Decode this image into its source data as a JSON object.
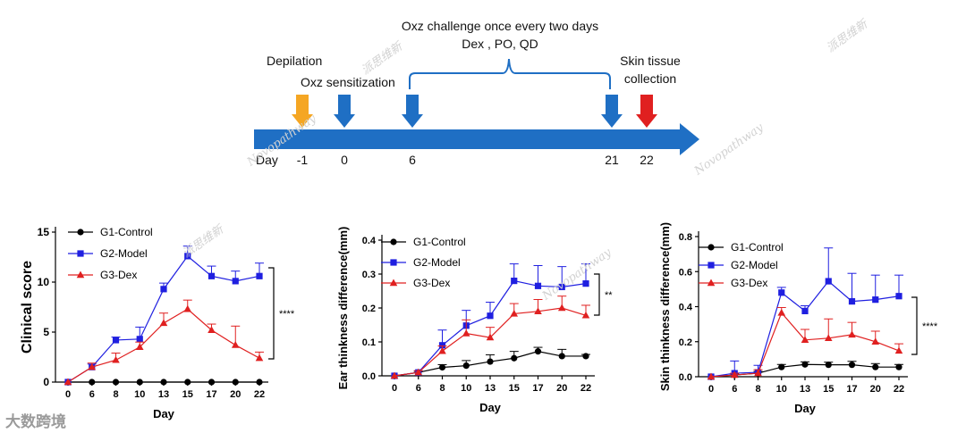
{
  "timeline": {
    "labels": {
      "depilation": "Depilation",
      "sensitization": "Oxz sensitization",
      "challenge": "Oxz challenge once every two days",
      "treatment": "Dex , PO, QD",
      "collection_line1": "Skin tissue",
      "collection_line2": "collection"
    },
    "day_label": "Day",
    "days": [
      "-1",
      "0",
      "6",
      "21",
      "22"
    ],
    "colors": {
      "axis": "#1f6fc4",
      "depilation": "#f5a623",
      "blue_marker": "#1f6fc4",
      "collection": "#e02020",
      "bracket": "#1f6fc4"
    }
  },
  "chart_data": [
    {
      "type": "line",
      "id": "clinical",
      "title": "",
      "xlabel": "Day",
      "ylabel": "Clinical score",
      "categories": [
        "0",
        "6",
        "8",
        "10",
        "13",
        "15",
        "17",
        "20",
        "22"
      ],
      "ylim": [
        0,
        15
      ],
      "yticks": [
        "0",
        "5",
        "10",
        "15"
      ],
      "legend_position": "top-left",
      "significance": "****",
      "series": [
        {
          "name": "G1-Control",
          "color": "#000000",
          "marker": "circle",
          "values": [
            0,
            0,
            0,
            0,
            0,
            0,
            0,
            0,
            0
          ],
          "errors": [
            0,
            0,
            0,
            0,
            0,
            0,
            0,
            0,
            0
          ]
        },
        {
          "name": "G2-Model",
          "color": "#1f1fe0",
          "marker": "square",
          "values": [
            0,
            1.5,
            4.2,
            4.3,
            9.3,
            12.6,
            10.6,
            10.1,
            10.6
          ],
          "errors": [
            0,
            0.3,
            0.3,
            1.2,
            0.6,
            1.0,
            1.0,
            1.0,
            1.3
          ]
        },
        {
          "name": "G3-Dex",
          "color": "#e02020",
          "marker": "triangle",
          "values": [
            0,
            1.5,
            2.2,
            3.5,
            5.9,
            7.3,
            5.2,
            3.7,
            2.4
          ],
          "errors": [
            0,
            0.4,
            0.7,
            0.5,
            1.0,
            0.9,
            0.6,
            1.9,
            0.6
          ]
        }
      ]
    },
    {
      "type": "line",
      "id": "ear",
      "title": "",
      "xlabel": "Day",
      "ylabel": "Ear thinkness difference(mm)",
      "categories": [
        "0",
        "6",
        "8",
        "10",
        "13",
        "15",
        "17",
        "20",
        "22"
      ],
      "ylim": [
        0,
        0.4
      ],
      "yticks": [
        "0.0",
        "0.1",
        "0.2",
        "0.3",
        "0.4"
      ],
      "legend_position": "top-left",
      "significance": "**",
      "series": [
        {
          "name": "G1-Control",
          "color": "#000000",
          "marker": "circle",
          "values": [
            0,
            0.01,
            0.025,
            0.03,
            0.042,
            0.052,
            0.072,
            0.058,
            0.058
          ],
          "errors": [
            0,
            0.003,
            0.008,
            0.015,
            0.02,
            0.02,
            0.012,
            0.02,
            0.005
          ]
        },
        {
          "name": "G2-Model",
          "color": "#1f1fe0",
          "marker": "square",
          "values": [
            0,
            0.01,
            0.09,
            0.148,
            0.177,
            0.28,
            0.265,
            0.262,
            0.272
          ],
          "errors": [
            0,
            0.005,
            0.045,
            0.045,
            0.04,
            0.05,
            0.06,
            0.06,
            0.058
          ]
        },
        {
          "name": "G3-Dex",
          "color": "#e02020",
          "marker": "triangle",
          "values": [
            0,
            0.01,
            0.073,
            0.125,
            0.113,
            0.183,
            0.19,
            0.2,
            0.178
          ],
          "errors": [
            0,
            0.005,
            0.015,
            0.04,
            0.03,
            0.03,
            0.035,
            0.035,
            0.03
          ]
        }
      ]
    },
    {
      "type": "line",
      "id": "skin",
      "title": "",
      "xlabel": "Day",
      "ylabel": "Skin thinkness difference(mm)",
      "categories": [
        "0",
        "6",
        "8",
        "10",
        "13",
        "15",
        "17",
        "20",
        "22"
      ],
      "ylim": [
        0,
        0.8
      ],
      "yticks": [
        "0.0",
        "0.2",
        "0.4",
        "0.6",
        "0.8"
      ],
      "legend_position": "top-left",
      "significance": "****",
      "series": [
        {
          "name": "G1-Control",
          "color": "#000000",
          "marker": "circle",
          "values": [
            0,
            0.01,
            0.02,
            0.055,
            0.07,
            0.068,
            0.068,
            0.055,
            0.055
          ],
          "errors": [
            0,
            0.005,
            0.01,
            0.015,
            0.015,
            0.015,
            0.02,
            0.02,
            0.015
          ]
        },
        {
          "name": "G2-Model",
          "color": "#1f1fe0",
          "marker": "square",
          "values": [
            0,
            0.02,
            0.025,
            0.48,
            0.375,
            0.545,
            0.43,
            0.44,
            0.46
          ],
          "errors": [
            0,
            0.07,
            0.04,
            0.03,
            0.03,
            0.19,
            0.16,
            0.14,
            0.12
          ]
        },
        {
          "name": "G3-Dex",
          "color": "#e02020",
          "marker": "triangle",
          "values": [
            0,
            0.01,
            0.02,
            0.365,
            0.21,
            0.22,
            0.24,
            0.2,
            0.148
          ],
          "errors": [
            0,
            0.01,
            0.02,
            0.03,
            0.06,
            0.11,
            0.07,
            0.06,
            0.04
          ]
        }
      ]
    }
  ],
  "watermark": {
    "brand_cn": "派思维新",
    "brand_en": "Novopathway",
    "footer": "大数跨境"
  }
}
